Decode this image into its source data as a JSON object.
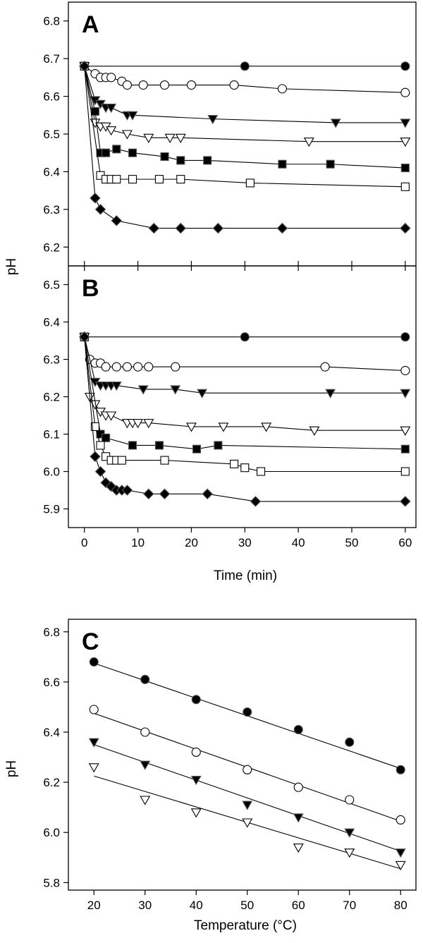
{
  "figure": {
    "shared_y_label": "pH",
    "x_label_time": "Time (min)",
    "x_label_temp": "Temperature (°C)"
  },
  "chart_data": [
    {
      "panel": "A",
      "type": "line",
      "xlim": [
        -3,
        62
      ],
      "ylim": [
        6.15,
        6.85
      ],
      "yticks": [
        6.2,
        6.3,
        6.4,
        6.5,
        6.6,
        6.7,
        6.8
      ],
      "xticks": [
        0,
        10,
        20,
        30,
        40,
        50,
        60
      ],
      "show_xtick_labels": false,
      "series": [
        {
          "marker": "circle",
          "filled": true,
          "x": [
            0,
            30,
            60
          ],
          "y": [
            6.68,
            6.68,
            6.68
          ]
        },
        {
          "marker": "circle",
          "filled": false,
          "x": [
            0,
            2,
            3,
            4,
            5,
            7,
            8,
            11,
            15,
            20,
            28,
            37,
            60
          ],
          "y": [
            6.68,
            6.66,
            6.65,
            6.65,
            6.65,
            6.64,
            6.63,
            6.63,
            6.63,
            6.63,
            6.63,
            6.62,
            6.61
          ]
        },
        {
          "marker": "triangle-down",
          "filled": true,
          "x": [
            0,
            2,
            3,
            4,
            5,
            8,
            9,
            24,
            47,
            60
          ],
          "y": [
            6.68,
            6.59,
            6.58,
            6.57,
            6.57,
            6.55,
            6.55,
            6.54,
            6.53,
            6.53
          ]
        },
        {
          "marker": "triangle-down",
          "filled": false,
          "x": [
            0,
            2,
            3,
            4,
            5,
            8,
            12,
            16,
            18,
            42,
            60
          ],
          "y": [
            6.68,
            6.53,
            6.52,
            6.52,
            6.51,
            6.5,
            6.49,
            6.49,
            6.49,
            6.48,
            6.48
          ]
        },
        {
          "marker": "square",
          "filled": true,
          "x": [
            0,
            2,
            3,
            4,
            6,
            9,
            15,
            18,
            23,
            37,
            46,
            60
          ],
          "y": [
            6.68,
            6.56,
            6.45,
            6.45,
            6.46,
            6.45,
            6.44,
            6.43,
            6.43,
            6.42,
            6.42,
            6.41
          ]
        },
        {
          "marker": "square",
          "filled": false,
          "x": [
            0,
            3,
            4,
            5,
            6,
            9,
            14,
            18,
            31,
            60
          ],
          "y": [
            6.68,
            6.39,
            6.38,
            6.38,
            6.38,
            6.38,
            6.38,
            6.38,
            6.37,
            6.36
          ]
        },
        {
          "marker": "diamond",
          "filled": true,
          "x": [
            0,
            2,
            3,
            6,
            13,
            18,
            25,
            37,
            60
          ],
          "y": [
            6.68,
            6.33,
            6.3,
            6.27,
            6.25,
            6.25,
            6.25,
            6.25,
            6.25
          ]
        }
      ]
    },
    {
      "panel": "B",
      "type": "line",
      "xlim": [
        -3,
        62
      ],
      "ylim": [
        5.85,
        6.55
      ],
      "yticks": [
        5.9,
        6.0,
        6.1,
        6.2,
        6.3,
        6.4,
        6.5
      ],
      "xticks": [
        0,
        10,
        20,
        30,
        40,
        50,
        60
      ],
      "show_xtick_labels": true,
      "series": [
        {
          "marker": "circle",
          "filled": true,
          "x": [
            0,
            30,
            60
          ],
          "y": [
            6.36,
            6.36,
            6.36
          ]
        },
        {
          "marker": "circle",
          "filled": false,
          "x": [
            0,
            1,
            2,
            3,
            4,
            6,
            8,
            10,
            12,
            17,
            45,
            60
          ],
          "y": [
            6.36,
            6.3,
            6.29,
            6.29,
            6.28,
            6.28,
            6.28,
            6.28,
            6.28,
            6.28,
            6.28,
            6.27
          ]
        },
        {
          "marker": "triangle-down",
          "filled": true,
          "x": [
            0,
            2,
            3,
            4,
            5,
            6,
            11,
            17,
            22,
            46,
            60
          ],
          "y": [
            6.36,
            6.24,
            6.23,
            6.23,
            6.23,
            6.23,
            6.22,
            6.22,
            6.21,
            6.21,
            6.21
          ]
        },
        {
          "marker": "triangle-down",
          "filled": false,
          "x": [
            0,
            1,
            2,
            3,
            4,
            5,
            8,
            9,
            10,
            12,
            20,
            26,
            34,
            43,
            60
          ],
          "y": [
            6.36,
            6.2,
            6.18,
            6.16,
            6.15,
            6.15,
            6.13,
            6.13,
            6.13,
            6.13,
            6.12,
            6.12,
            6.12,
            6.11,
            6.11
          ]
        },
        {
          "marker": "square",
          "filled": true,
          "x": [
            0,
            3,
            4,
            9,
            14,
            21,
            25,
            60
          ],
          "y": [
            6.36,
            6.1,
            6.09,
            6.07,
            6.07,
            6.06,
            6.07,
            6.06
          ]
        },
        {
          "marker": "square",
          "filled": false,
          "x": [
            0,
            2,
            3,
            4,
            5,
            6,
            7,
            15,
            28,
            30,
            33,
            60
          ],
          "y": [
            6.36,
            6.12,
            6.07,
            6.04,
            6.03,
            6.03,
            6.03,
            6.03,
            6.02,
            6.01,
            6.0,
            6.0
          ]
        },
        {
          "marker": "diamond",
          "filled": true,
          "x": [
            0,
            2,
            3,
            4,
            5,
            6,
            7,
            8,
            12,
            15,
            23,
            32,
            60
          ],
          "y": [
            6.36,
            6.04,
            6.0,
            5.97,
            5.96,
            5.95,
            5.95,
            5.95,
            5.94,
            5.94,
            5.94,
            5.92,
            5.92
          ]
        }
      ]
    },
    {
      "panel": "C",
      "type": "scatter",
      "xlim": [
        15,
        83
      ],
      "ylim": [
        5.77,
        6.85
      ],
      "yticks": [
        5.8,
        6.0,
        6.2,
        6.4,
        6.6,
        6.8
      ],
      "ytick_labels": [
        "5.8",
        "6.0",
        "6.2",
        "6.4",
        "6.6",
        "6.8"
      ],
      "xticks": [
        20,
        30,
        40,
        50,
        60,
        70,
        80
      ],
      "show_xtick_labels": true,
      "series": [
        {
          "marker": "circle",
          "filled": true,
          "x": [
            20,
            30,
            40,
            50,
            60,
            70,
            80
          ],
          "y": [
            6.68,
            6.61,
            6.53,
            6.48,
            6.41,
            6.36,
            6.25
          ],
          "fit": [
            [
              20,
              6.675
            ],
            [
              80,
              6.255
            ]
          ]
        },
        {
          "marker": "circle",
          "filled": false,
          "x": [
            20,
            30,
            40,
            50,
            60,
            70,
            80
          ],
          "y": [
            6.49,
            6.4,
            6.32,
            6.25,
            6.18,
            6.13,
            6.05
          ],
          "fit": [
            [
              20,
              6.475
            ],
            [
              80,
              6.045
            ]
          ]
        },
        {
          "marker": "triangle-down",
          "filled": true,
          "x": [
            20,
            30,
            40,
            50,
            60,
            70,
            80
          ],
          "y": [
            6.36,
            6.27,
            6.21,
            6.11,
            6.06,
            6.0,
            5.92
          ],
          "fit": [
            [
              20,
              6.35
            ],
            [
              80,
              5.925
            ]
          ]
        },
        {
          "marker": "triangle-down",
          "filled": false,
          "x": [
            20,
            30,
            40,
            50,
            60,
            70,
            80
          ],
          "y": [
            6.26,
            6.13,
            6.08,
            6.04,
            5.94,
            5.92,
            5.87
          ],
          "fit": [
            [
              20,
              6.225
            ],
            [
              80,
              5.855
            ]
          ]
        }
      ]
    }
  ]
}
